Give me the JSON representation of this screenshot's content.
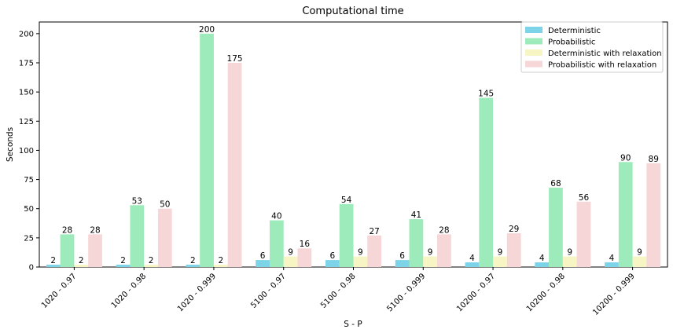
{
  "chart_data": {
    "type": "bar",
    "title": "Computational time",
    "xlabel": "S - P",
    "ylabel": "Seconds",
    "ylim": [
      0,
      210
    ],
    "yticks": [
      0,
      25,
      50,
      75,
      100,
      125,
      150,
      175,
      200
    ],
    "grid": false,
    "legend_position": "top-right",
    "categories": [
      "1020 - 0.97",
      "1020 - 0.98",
      "1020 - 0.999",
      "5100 - 0.97",
      "5100 - 0.98",
      "5100 - 0.999",
      "10200 - 0.97",
      "10200 - 0.98",
      "10200 - 0.999"
    ],
    "series": [
      {
        "name": "Deterministic",
        "color": "#7dd3e8",
        "values": [
          2,
          2,
          2,
          6,
          6,
          6,
          4,
          4,
          4
        ]
      },
      {
        "name": "Probabilistic",
        "color": "#9debbb",
        "values": [
          28,
          53,
          200,
          40,
          54,
          41,
          145,
          68,
          90
        ]
      },
      {
        "name": "Deterministic with relaxation",
        "color": "#f7f5c4",
        "values": [
          2,
          2,
          2,
          9,
          9,
          9,
          9,
          9,
          9
        ]
      },
      {
        "name": "Probabilistic with relaxation",
        "color": "#f7d6d8",
        "values": [
          28,
          50,
          175,
          16,
          27,
          28,
          29,
          56,
          89
        ]
      }
    ]
  }
}
